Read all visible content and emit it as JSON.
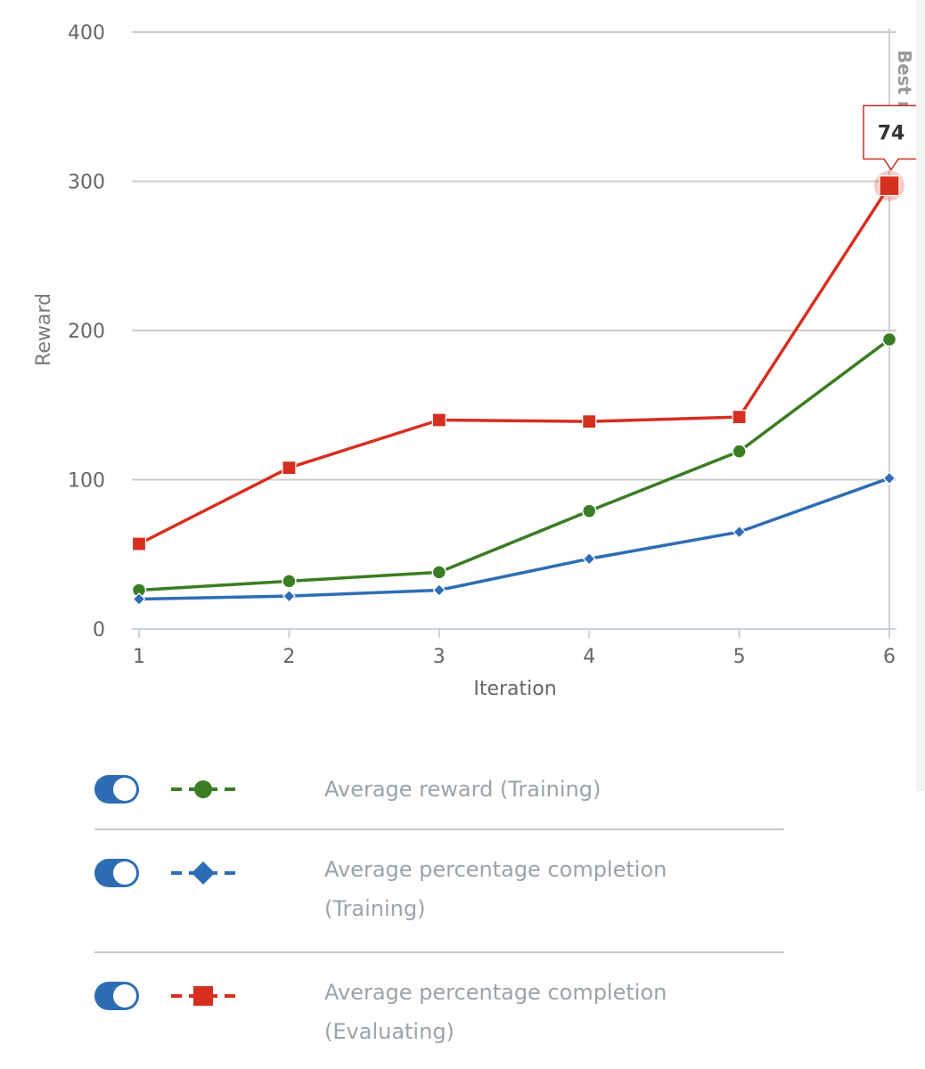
{
  "chart_data": {
    "type": "line",
    "x": [
      1,
      2,
      3,
      4,
      5,
      6
    ],
    "xlabel": "Iteration",
    "ylabel": "Reward",
    "ylim": [
      0,
      400
    ],
    "yticks": [
      0,
      100,
      200,
      300,
      400
    ],
    "grid": true,
    "series": [
      {
        "name": "Average reward (Training)",
        "color": "#3a7d23",
        "marker": "circle",
        "values": [
          26,
          32,
          38,
          79,
          119,
          194
        ]
      },
      {
        "name": "Average percentage completion (Training)",
        "color": "#2e6db4",
        "marker": "diamond",
        "values": [
          20,
          22,
          26,
          47,
          65,
          101
        ]
      },
      {
        "name": "Average percentage completion (Evaluating)",
        "color": "#d62f20",
        "marker": "square",
        "values": [
          57,
          108,
          140,
          139,
          142,
          297
        ]
      }
    ],
    "tooltip": {
      "text": "74",
      "series_index": 2,
      "point_index": 5
    },
    "plot_band_label": "Best r"
  },
  "legend": {
    "items": [
      {
        "label": "Average reward (Training)",
        "color": "#3a7d23",
        "icon": "circle-marker-icon",
        "enabled": true
      },
      {
        "label": "Average percentage completion (Training)",
        "color": "#2e6db4",
        "icon": "diamond-marker-icon",
        "enabled": true
      },
      {
        "label": "Average percentage completion (Evaluating)",
        "color": "#d62f20",
        "icon": "square-marker-icon",
        "enabled": true
      }
    ]
  }
}
